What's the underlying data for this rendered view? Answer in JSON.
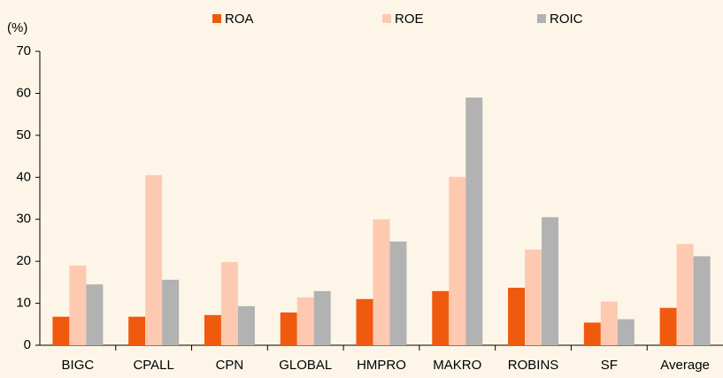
{
  "chart_data": {
    "type": "bar",
    "y_unit": "(%)",
    "categories": [
      "BIGC",
      "CPALL",
      "CPN",
      "GLOBAL",
      "HMPRO",
      "MAKRO",
      "ROBINS",
      "SF",
      "Average"
    ],
    "series": [
      {
        "name": "ROA",
        "color": "#f05a0f",
        "values": [
          6.8,
          6.8,
          7.2,
          7.8,
          11,
          12.9,
          13.7,
          5.4,
          8.9
        ]
      },
      {
        "name": "ROE",
        "color": "#fdc9b0",
        "values": [
          19,
          40.5,
          19.8,
          11.4,
          30,
          40.1,
          22.8,
          10.4,
          24.1
        ]
      },
      {
        "name": "ROIC",
        "color": "#b2b2b2",
        "values": [
          14.5,
          15.6,
          9.3,
          12.9,
          24.7,
          59,
          30.5,
          6.2,
          21.2
        ]
      }
    ],
    "ylim": [
      0,
      70
    ],
    "yticks": [
      0,
      10,
      20,
      30,
      40,
      50,
      60,
      70
    ],
    "grid": false,
    "legend": "top"
  }
}
